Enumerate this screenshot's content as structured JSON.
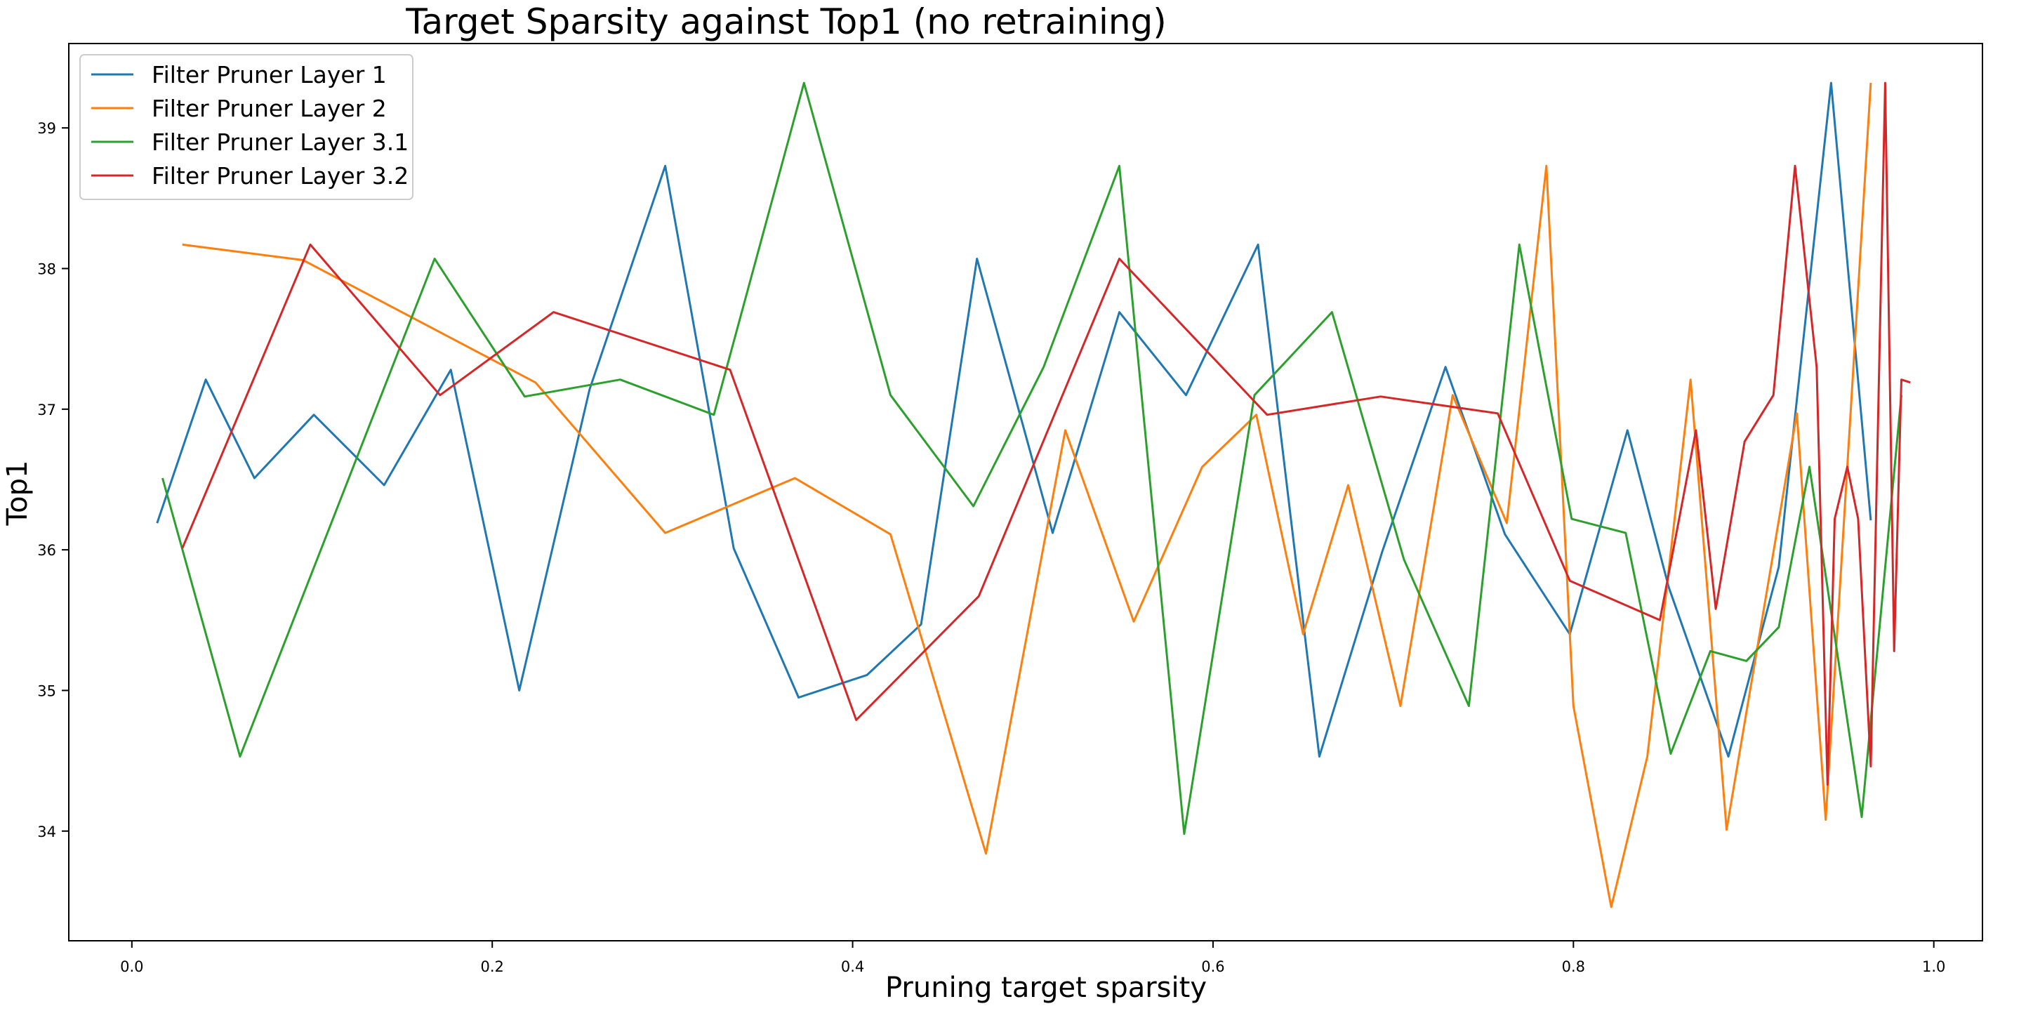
{
  "chart_data": {
    "type": "line",
    "title": "Target Sparsity against Top1 (no retraining)",
    "xlabel": "Pruning target sparsity",
    "ylabel": "Top1",
    "xlim": [
      -0.035,
      1.027
    ],
    "ylim": [
      33.22,
      39.6
    ],
    "xticks": [
      0.0,
      0.2,
      0.4,
      0.6,
      0.8,
      1.0
    ],
    "xtick_labels": [
      "0.0",
      "0.2",
      "0.4",
      "0.6",
      "0.8",
      "1.0"
    ],
    "yticks": [
      34,
      35,
      36,
      37,
      38,
      39
    ],
    "ytick_labels": [
      "34",
      "35",
      "36",
      "37",
      "38",
      "39"
    ],
    "grid": false,
    "legend_position": "upper-left",
    "series": [
      {
        "name": "Filter Pruner Layer 1",
        "color": "#1f77b4",
        "x": [
          0.014,
          0.041,
          0.068,
          0.101,
          0.14,
          0.177,
          0.215,
          0.254,
          0.296,
          0.334,
          0.37,
          0.408,
          0.438,
          0.469,
          0.511,
          0.548,
          0.585,
          0.625,
          0.659,
          0.694,
          0.729,
          0.762,
          0.798,
          0.83,
          0.853,
          0.886,
          0.914,
          0.943,
          0.965
        ],
        "y": [
          36.19,
          37.21,
          36.51,
          36.96,
          36.46,
          37.28,
          35.0,
          37.14,
          38.73,
          36.01,
          34.95,
          35.11,
          35.47,
          38.07,
          36.12,
          37.69,
          37.1,
          38.17,
          34.53,
          35.99,
          37.3,
          36.11,
          35.4,
          36.85,
          35.73,
          34.53,
          35.88,
          39.32,
          36.21
        ]
      },
      {
        "name": "Filter Pruner Layer 2",
        "color": "#ff7f0e",
        "x": [
          0.028,
          0.095,
          0.224,
          0.296,
          0.368,
          0.421,
          0.474,
          0.518,
          0.556,
          0.594,
          0.624,
          0.65,
          0.675,
          0.704,
          0.733,
          0.763,
          0.785,
          0.8,
          0.821,
          0.841,
          0.865,
          0.885,
          0.924,
          0.94,
          0.965
        ],
        "y": [
          38.17,
          38.06,
          37.19,
          36.12,
          36.51,
          36.11,
          33.84,
          36.85,
          35.49,
          36.59,
          36.96,
          35.4,
          36.46,
          34.89,
          37.1,
          36.19,
          38.73,
          34.89,
          33.46,
          34.53,
          37.21,
          34.01,
          36.97,
          34.08,
          39.32
        ]
      },
      {
        "name": "Filter Pruner Layer 3.1",
        "color": "#2ca02c",
        "x": [
          0.017,
          0.06,
          0.168,
          0.218,
          0.271,
          0.323,
          0.373,
          0.421,
          0.467,
          0.506,
          0.548,
          0.584,
          0.623,
          0.666,
          0.706,
          0.742,
          0.77,
          0.799,
          0.829,
          0.854,
          0.876,
          0.896,
          0.914,
          0.931,
          0.96,
          0.982
        ],
        "y": [
          36.51,
          34.53,
          38.07,
          37.09,
          37.21,
          36.96,
          39.32,
          37.1,
          36.31,
          37.3,
          38.73,
          33.98,
          37.1,
          37.69,
          35.93,
          34.89,
          38.17,
          36.22,
          36.12,
          34.55,
          35.28,
          35.21,
          35.45,
          36.59,
          34.1,
          37.1
        ]
      },
      {
        "name": "Filter Pruner Layer 3.2",
        "color": "#d62728",
        "x": [
          0.028,
          0.099,
          0.171,
          0.234,
          0.332,
          0.402,
          0.47,
          0.548,
          0.63,
          0.693,
          0.758,
          0.798,
          0.848,
          0.868,
          0.879,
          0.895,
          0.911,
          0.923,
          0.935,
          0.941,
          0.945,
          0.952,
          0.958,
          0.965,
          0.973,
          0.978,
          0.982,
          0.987
        ],
        "y": [
          36.01,
          38.17,
          37.1,
          37.69,
          37.28,
          34.79,
          35.67,
          38.07,
          36.96,
          37.09,
          36.97,
          35.78,
          35.5,
          36.85,
          35.58,
          36.77,
          37.1,
          38.73,
          37.3,
          34.33,
          36.22,
          36.59,
          36.22,
          34.46,
          39.32,
          35.28,
          37.21,
          37.19
        ]
      }
    ]
  }
}
